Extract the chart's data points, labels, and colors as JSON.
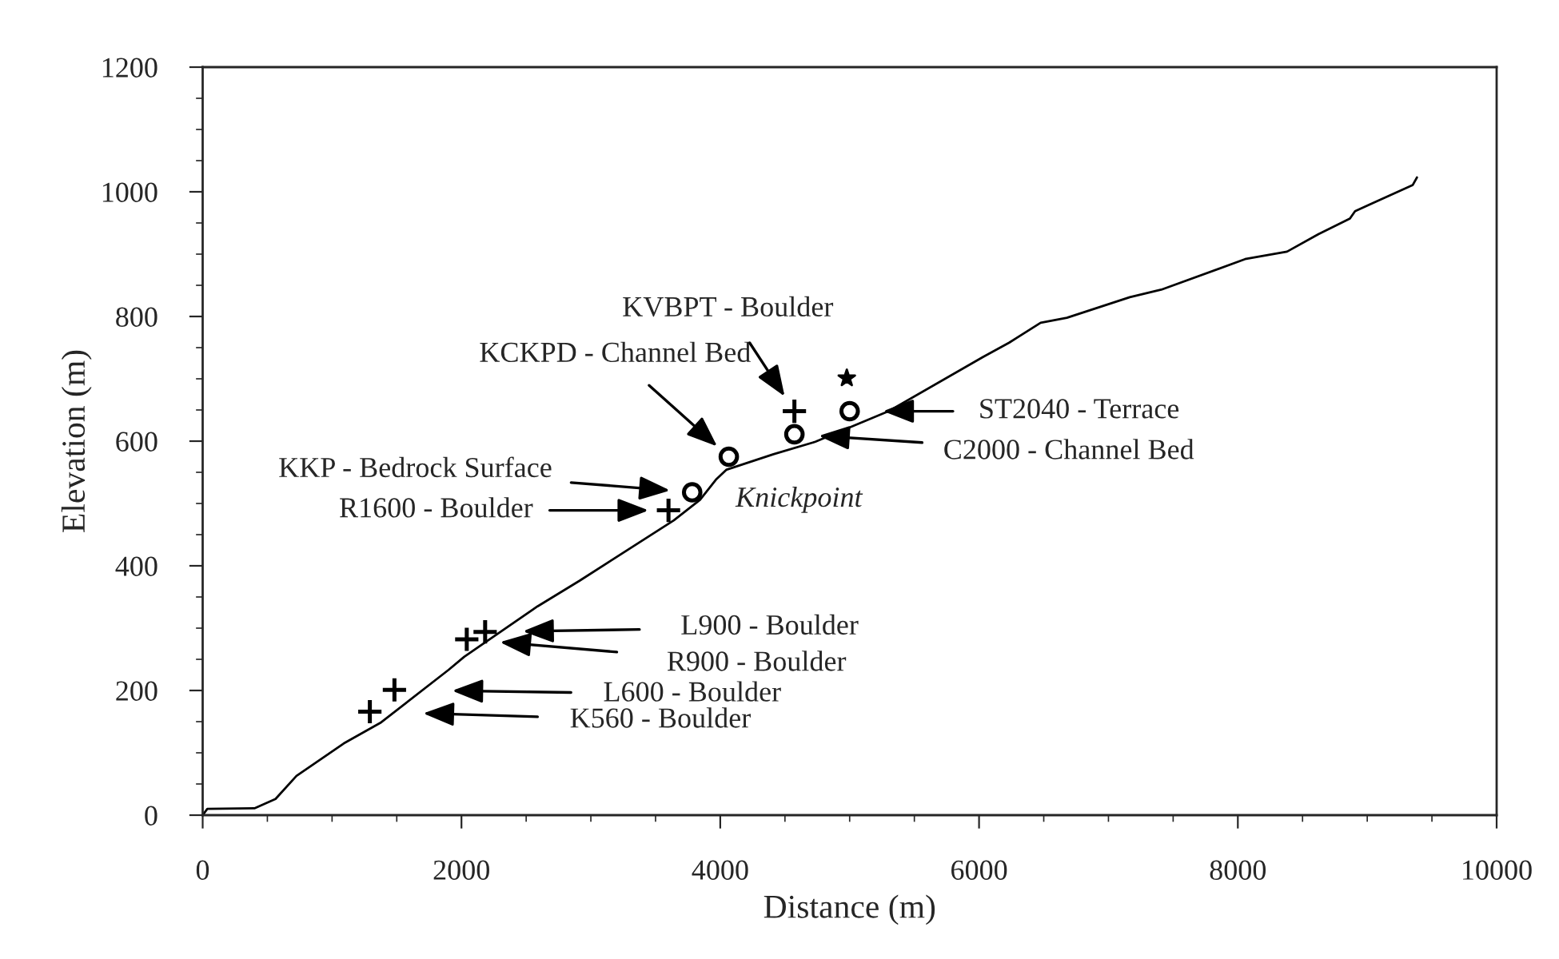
{
  "chart_data": {
    "type": "line",
    "xlabel": "Distance (m)",
    "ylabel": "Elevation (m)",
    "xlim": [
      0,
      10000
    ],
    "ylim": [
      0,
      1200
    ],
    "xticks": [
      0,
      2000,
      4000,
      6000,
      8000,
      10000
    ],
    "yticks": [
      0,
      200,
      400,
      600,
      800,
      1000,
      1200
    ],
    "grid": false,
    "legend": false,
    "series": [
      {
        "color": "#000000",
        "marker": "none",
        "x": [
          0,
          36,
          400,
          563,
          725,
          1090,
          1373,
          1900,
          2021,
          2588,
          2912,
          3641,
          3844,
          3966,
          4046,
          4411,
          4735,
          5301,
          6030,
          6233,
          6476,
          6679,
          7165,
          7408,
          8056,
          8380,
          8623,
          8866,
          8906,
          9352,
          9384
        ],
        "values": [
          0,
          10,
          11,
          26,
          63,
          115,
          148,
          233,
          254,
          335,
          376,
          473,
          506,
          538,
          554,
          579,
          599,
          648,
          735,
          758,
          790,
          798,
          831,
          843,
          892,
          904,
          932,
          957,
          969,
          1011,
          1023
        ]
      },
      {
        "type": "scatter",
        "color": "#000000",
        "marker": "cross",
        "x": [
          1292,
          1482,
          2041,
          2183,
          3600,
          4573
        ],
        "values": [
          166,
          201,
          282,
          294,
          489,
          648
        ]
      },
      {
        "type": "scatter",
        "color": "#000000",
        "marker": "circle",
        "x": [
          3783,
          4066,
          4573,
          5000
        ],
        "values": [
          518,
          575,
          611,
          648
        ]
      },
      {
        "type": "scatter",
        "color": "#000000",
        "marker": "star",
        "x": [
          4978
        ],
        "values": [
          701
        ]
      }
    ],
    "annotations": [
      "K560 - Boulder",
      "L600 - Boulder",
      "R900 - Boulder",
      "L900 - Boulder",
      "R1600 - Boulder",
      "KKP - Bedrock Surface",
      "KCKPD - Channel Bed",
      "KVBPT - Boulder",
      "C2000 - Channel Bed",
      "ST2040 - Terrace",
      "Knickpoint"
    ]
  }
}
